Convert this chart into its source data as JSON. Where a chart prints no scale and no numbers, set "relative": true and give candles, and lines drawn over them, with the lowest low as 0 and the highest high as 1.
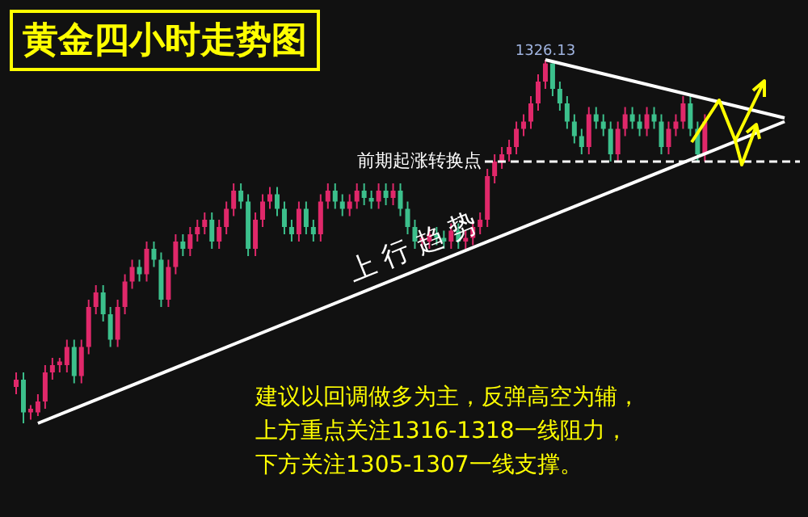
{
  "chart_data": {
    "type": "candlestick",
    "title": "黄金四小时走势图",
    "relative": true,
    "categories": [
      null,
      null,
      null,
      null,
      null,
      null,
      null,
      null,
      null,
      null,
      null,
      null,
      null,
      null,
      null,
      null,
      null,
      null,
      null,
      null,
      null,
      null,
      null,
      null,
      null,
      null,
      null,
      null,
      null,
      null,
      null,
      null,
      null,
      null,
      null,
      null,
      null,
      null,
      null,
      null,
      null,
      null,
      null,
      null,
      null,
      null,
      null,
      null,
      null,
      null,
      null,
      null,
      null,
      null,
      null,
      null,
      null,
      null,
      null,
      null,
      null,
      null,
      null,
      null,
      null,
      null,
      null,
      null,
      null,
      null,
      null,
      null,
      null,
      null,
      null,
      null,
      null,
      null,
      null,
      null,
      null,
      null,
      null,
      null,
      null,
      null,
      null,
      null,
      null,
      null,
      null,
      null,
      null,
      null,
      null,
      null,
      null,
      null,
      null,
      null,
      null,
      null,
      null,
      null,
      null,
      null,
      null
    ],
    "ohlc": [
      [
        0.1,
        0.14,
        0.08,
        0.12
      ],
      [
        0.12,
        0.14,
        0.0,
        0.03
      ],
      [
        0.03,
        0.05,
        0.01,
        0.04
      ],
      [
        0.03,
        0.08,
        0.02,
        0.06
      ],
      [
        0.06,
        0.16,
        0.04,
        0.14
      ],
      [
        0.14,
        0.18,
        0.12,
        0.16
      ],
      [
        0.16,
        0.18,
        0.14,
        0.17
      ],
      [
        0.16,
        0.23,
        0.14,
        0.21
      ],
      [
        0.21,
        0.23,
        0.11,
        0.13
      ],
      [
        0.13,
        0.23,
        0.11,
        0.21
      ],
      [
        0.21,
        0.34,
        0.19,
        0.32
      ],
      [
        0.32,
        0.38,
        0.3,
        0.36
      ],
      [
        0.36,
        0.38,
        0.28,
        0.3
      ],
      [
        0.3,
        0.32,
        0.21,
        0.23
      ],
      [
        0.23,
        0.34,
        0.21,
        0.32
      ],
      [
        0.32,
        0.41,
        0.3,
        0.39
      ],
      [
        0.39,
        0.45,
        0.37,
        0.43
      ],
      [
        0.43,
        0.45,
        0.39,
        0.41
      ],
      [
        0.41,
        0.5,
        0.39,
        0.48
      ],
      [
        0.48,
        0.5,
        0.43,
        0.45
      ],
      [
        0.45,
        0.47,
        0.32,
        0.34
      ],
      [
        0.34,
        0.45,
        0.32,
        0.43
      ],
      [
        0.43,
        0.52,
        0.41,
        0.5
      ],
      [
        0.5,
        0.52,
        0.46,
        0.48
      ],
      [
        0.48,
        0.54,
        0.46,
        0.52
      ],
      [
        0.52,
        0.56,
        0.5,
        0.54
      ],
      [
        0.54,
        0.58,
        0.52,
        0.56
      ],
      [
        0.56,
        0.58,
        0.48,
        0.5
      ],
      [
        0.5,
        0.56,
        0.48,
        0.54
      ],
      [
        0.54,
        0.61,
        0.52,
        0.59
      ],
      [
        0.59,
        0.66,
        0.57,
        0.64
      ],
      [
        0.64,
        0.66,
        0.59,
        0.61
      ],
      [
        0.61,
        0.63,
        0.46,
        0.48
      ],
      [
        0.48,
        0.58,
        0.46,
        0.56
      ],
      [
        0.56,
        0.63,
        0.54,
        0.61
      ],
      [
        0.61,
        0.65,
        0.59,
        0.63
      ],
      [
        0.63,
        0.65,
        0.57,
        0.59
      ],
      [
        0.59,
        0.61,
        0.52,
        0.54
      ],
      [
        0.54,
        0.56,
        0.5,
        0.52
      ],
      [
        0.52,
        0.61,
        0.5,
        0.59
      ],
      [
        0.59,
        0.61,
        0.52,
        0.54
      ],
      [
        0.54,
        0.56,
        0.5,
        0.52
      ],
      [
        0.52,
        0.63,
        0.5,
        0.61
      ],
      [
        0.61,
        0.66,
        0.59,
        0.64
      ],
      [
        0.64,
        0.66,
        0.59,
        0.61
      ],
      [
        0.61,
        0.63,
        0.57,
        0.59
      ],
      [
        0.59,
        0.63,
        0.57,
        0.61
      ],
      [
        0.61,
        0.66,
        0.59,
        0.64
      ],
      [
        0.64,
        0.66,
        0.6,
        0.62
      ],
      [
        0.62,
        0.64,
        0.59,
        0.61
      ],
      [
        0.61,
        0.66,
        0.59,
        0.64
      ],
      [
        0.64,
        0.66,
        0.6,
        0.62
      ],
      [
        0.62,
        0.66,
        0.6,
        0.64
      ],
      [
        0.64,
        0.66,
        0.57,
        0.59
      ],
      [
        0.59,
        0.61,
        0.52,
        0.54
      ],
      [
        0.54,
        0.56,
        0.48,
        0.5
      ],
      [
        0.5,
        0.52,
        0.48,
        0.51
      ],
      [
        0.5,
        0.54,
        0.48,
        0.52
      ],
      [
        0.52,
        0.54,
        0.49,
        0.51
      ],
      [
        0.51,
        0.53,
        0.48,
        0.5
      ],
      [
        0.5,
        0.55,
        0.48,
        0.53
      ],
      [
        0.53,
        0.55,
        0.48,
        0.5
      ],
      [
        0.5,
        0.53,
        0.48,
        0.51
      ],
      [
        0.51,
        0.56,
        0.49,
        0.54
      ],
      [
        0.54,
        0.58,
        0.52,
        0.56
      ],
      [
        0.56,
        0.7,
        0.54,
        0.68
      ],
      [
        0.68,
        0.74,
        0.66,
        0.72
      ],
      [
        0.72,
        0.76,
        0.7,
        0.74
      ],
      [
        0.74,
        0.78,
        0.72,
        0.76
      ],
      [
        0.76,
        0.83,
        0.74,
        0.81
      ],
      [
        0.81,
        0.85,
        0.79,
        0.83
      ],
      [
        0.83,
        0.9,
        0.81,
        0.88
      ],
      [
        0.88,
        0.96,
        0.86,
        0.94
      ],
      [
        0.94,
        1.0,
        0.92,
        0.99
      ],
      [
        0.99,
        0.99,
        0.9,
        0.92
      ],
      [
        0.92,
        0.94,
        0.86,
        0.88
      ],
      [
        0.88,
        0.9,
        0.81,
        0.83
      ],
      [
        0.83,
        0.85,
        0.77,
        0.79
      ],
      [
        0.79,
        0.81,
        0.74,
        0.76
      ],
      [
        0.76,
        0.87,
        0.74,
        0.85
      ],
      [
        0.85,
        0.87,
        0.81,
        0.83
      ],
      [
        0.83,
        0.85,
        0.79,
        0.81
      ],
      [
        0.81,
        0.83,
        0.72,
        0.74
      ],
      [
        0.74,
        0.83,
        0.72,
        0.81
      ],
      [
        0.81,
        0.87,
        0.79,
        0.85
      ],
      [
        0.85,
        0.87,
        0.81,
        0.83
      ],
      [
        0.83,
        0.85,
        0.79,
        0.81
      ],
      [
        0.81,
        0.87,
        0.79,
        0.85
      ],
      [
        0.85,
        0.87,
        0.81,
        0.83
      ],
      [
        0.83,
        0.85,
        0.74,
        0.76
      ],
      [
        0.76,
        0.83,
        0.74,
        0.81
      ],
      [
        0.81,
        0.85,
        0.79,
        0.83
      ],
      [
        0.83,
        0.9,
        0.81,
        0.88
      ],
      [
        0.88,
        0.9,
        0.79,
        0.81
      ],
      [
        0.81,
        0.83,
        0.72,
        0.74
      ],
      [
        0.74,
        0.85,
        0.72,
        0.83
      ],
      null,
      null,
      null,
      null,
      null,
      null,
      null,
      null,
      null,
      null,
      null
    ],
    "series": [
      {
        "type": "line",
        "color": "#ffffff",
        "values": [
          null,
          null,
          null,
          0.0,
          null,
          null,
          null,
          null,
          null,
          null,
          null,
          null,
          null,
          null,
          null,
          null,
          null,
          null,
          null,
          null,
          null,
          null,
          null,
          null,
          null,
          null,
          null,
          null,
          null,
          null,
          null,
          null,
          null,
          null,
          null,
          null,
          null,
          null,
          null,
          null,
          null,
          null,
          null,
          null,
          null,
          null,
          null,
          null,
          null,
          null,
          null,
          null,
          null,
          null,
          null,
          null,
          null,
          null,
          null,
          null,
          null,
          null,
          null,
          null,
          null,
          null,
          null,
          null,
          null,
          null,
          null,
          null,
          null,
          null,
          null,
          null,
          null,
          null,
          null,
          null,
          null,
          null,
          null,
          null,
          null,
          null,
          null,
          null,
          null,
          null,
          null,
          null,
          null,
          null,
          null,
          null,
          null,
          null,
          null,
          null,
          null,
          null,
          null,
          null,
          null,
          null,
          0.83
        ]
      },
      {
        "type": "line",
        "color": "#ffffff",
        "values": [
          null,
          null,
          null,
          null,
          null,
          null,
          null,
          null,
          null,
          null,
          null,
          null,
          null,
          null,
          null,
          null,
          null,
          null,
          null,
          null,
          null,
          null,
          null,
          null,
          null,
          null,
          null,
          null,
          null,
          null,
          null,
          null,
          null,
          null,
          null,
          null,
          null,
          null,
          null,
          null,
          null,
          null,
          null,
          null,
          null,
          null,
          null,
          null,
          null,
          null,
          null,
          null,
          null,
          null,
          null,
          null,
          null,
          null,
          null,
          null,
          null,
          null,
          null,
          null,
          null,
          null,
          null,
          null,
          null,
          null,
          null,
          null,
          null,
          1.0,
          null,
          null,
          null,
          null,
          null,
          null,
          null,
          null,
          null,
          null,
          null,
          null,
          null,
          null,
          null,
          null,
          null,
          null,
          null,
          null,
          null,
          null,
          null,
          null,
          null,
          null,
          null,
          null,
          null,
          null,
          null,
          null,
          0.84
        ]
      }
    ],
    "ref_lines": [
      {
        "axis": "y",
        "value": 0.72,
        "label": "前期起涨转换点",
        "color": "#ffffff",
        "line_style": "dashed"
      }
    ],
    "annotations": [
      "1326.13",
      "上 行 趋 势",
      "建议以回调做多为主，反弹高空为辅，",
      "上方重点关注1316-1318一线阻力，",
      "下方关注1305-1307一线支撑。"
    ]
  }
}
